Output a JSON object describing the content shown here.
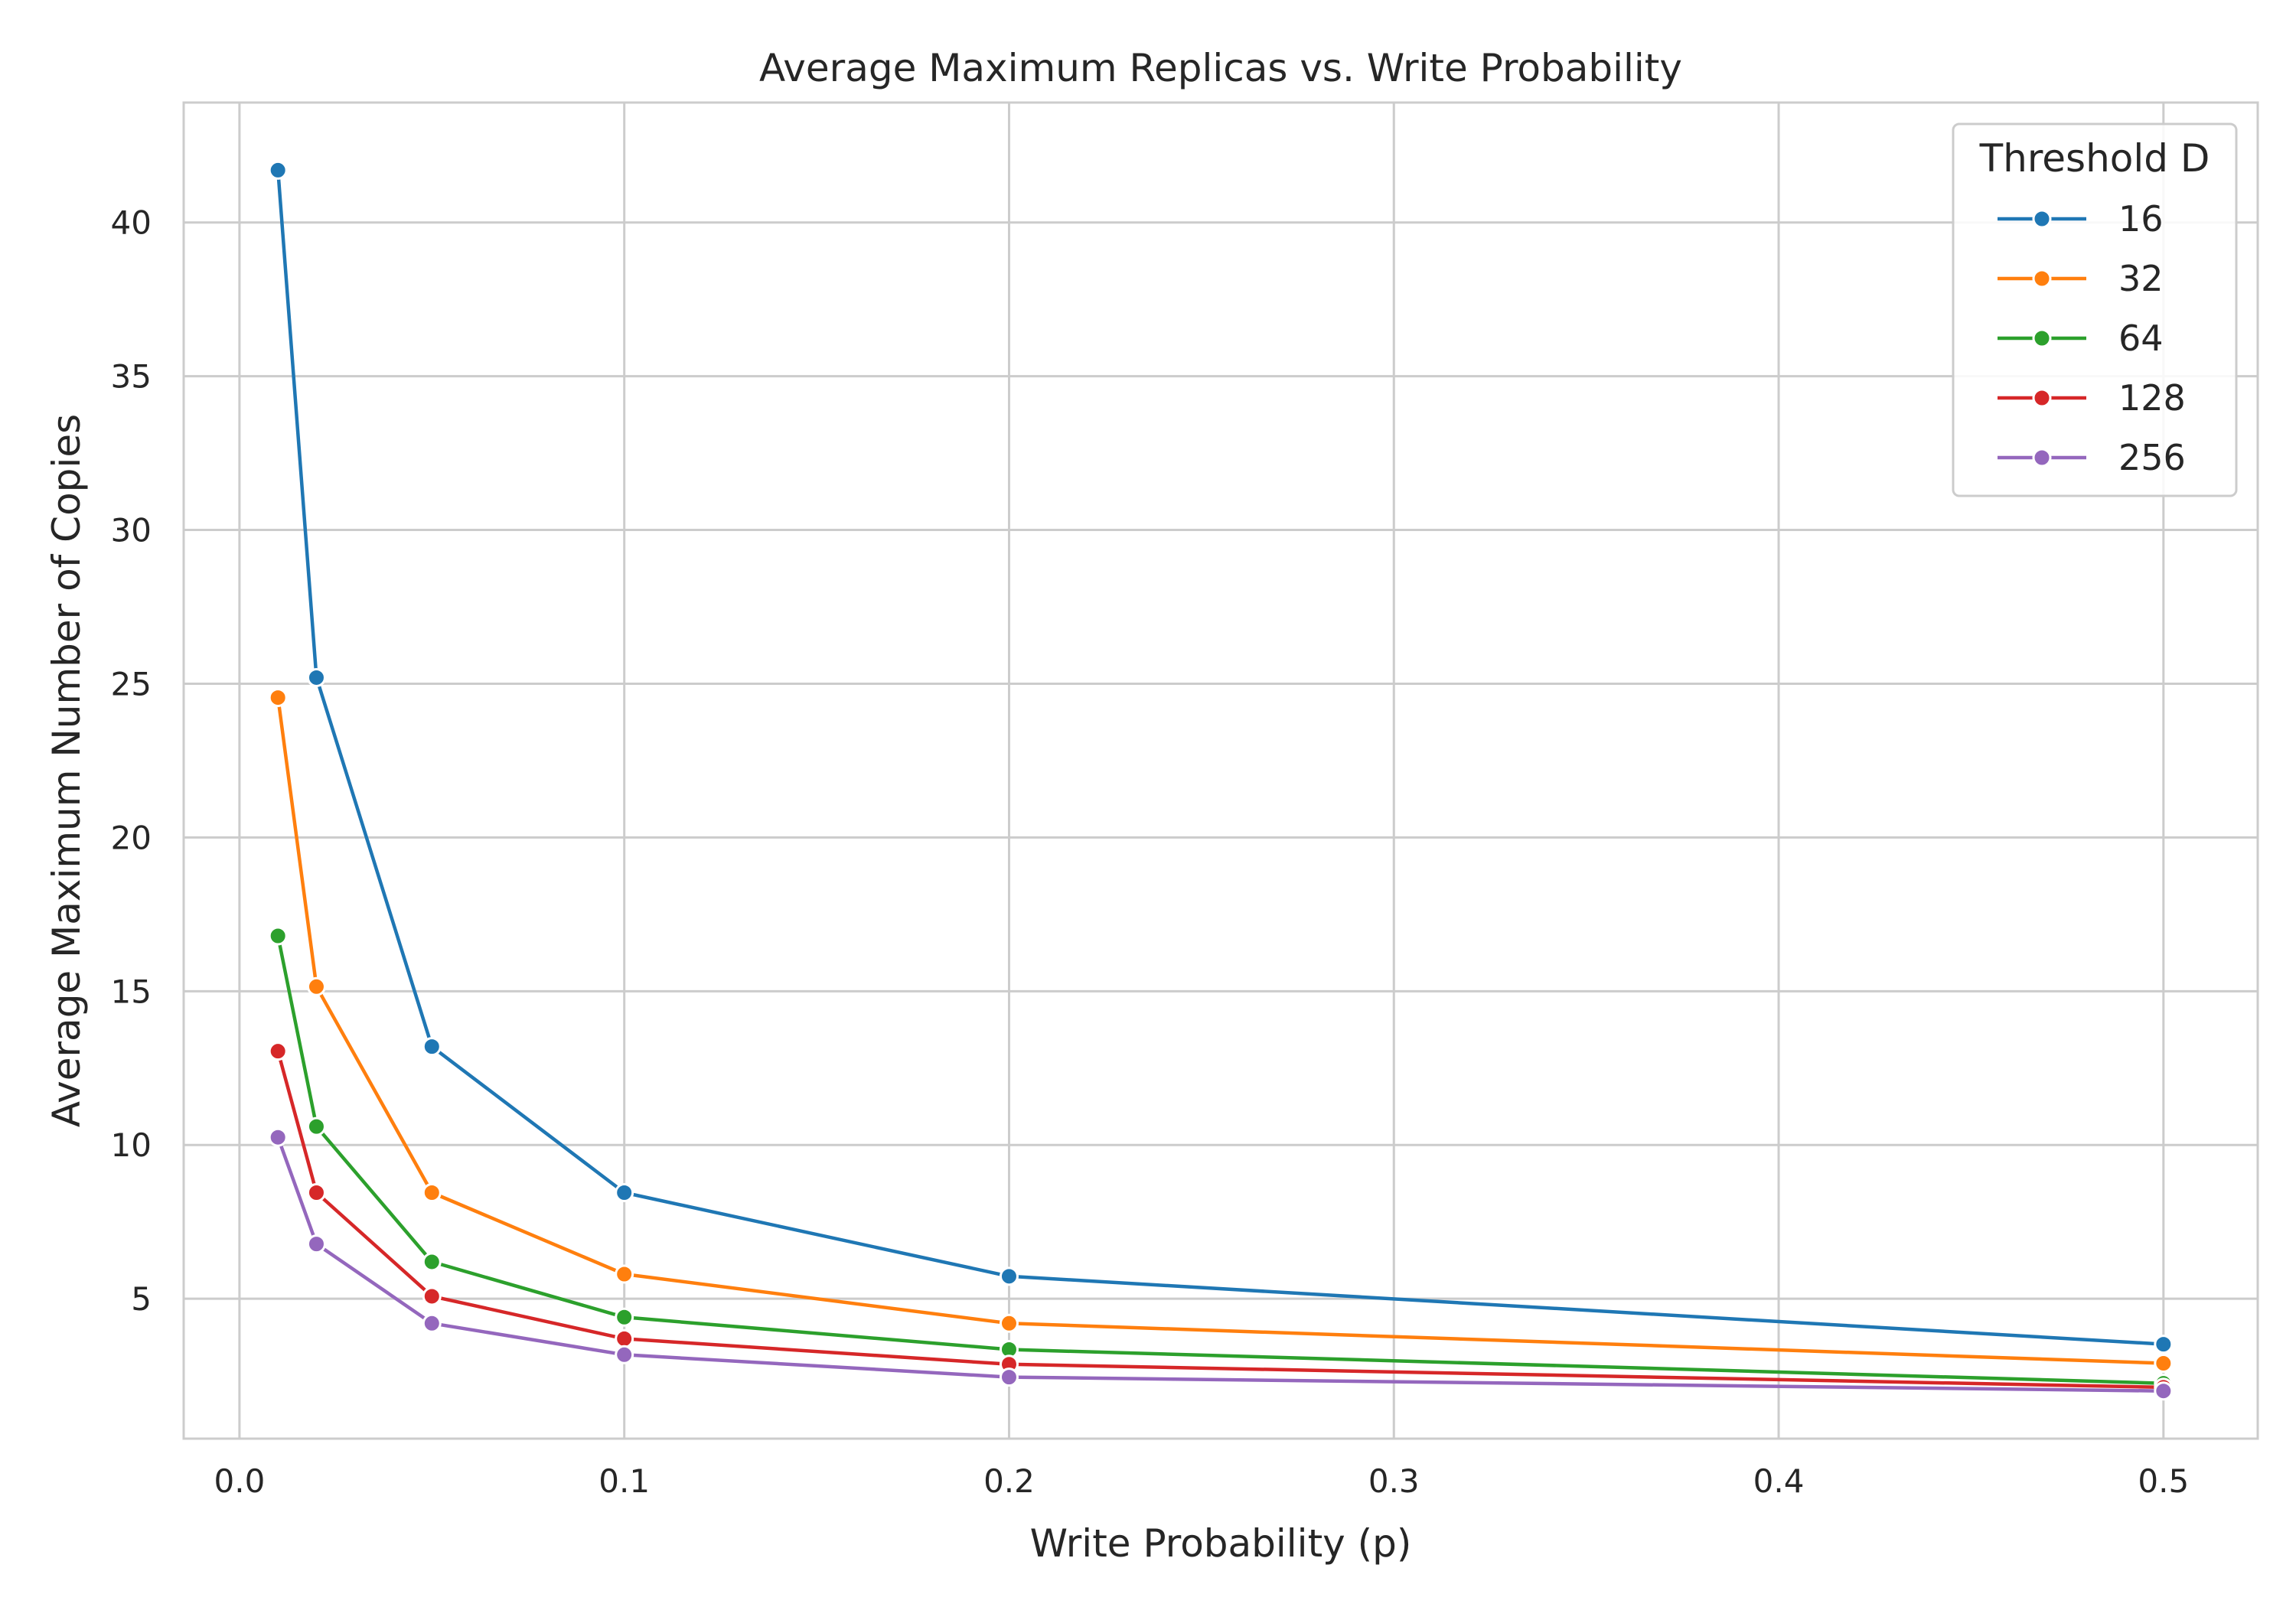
{
  "chart_data": {
    "type": "line",
    "title": "Average Maximum Replicas vs. Write Probability",
    "xlabel": "Write Probability (p)",
    "ylabel": "Average Maximum Number of Copies",
    "x": [
      0.01,
      0.02,
      0.05,
      0.1,
      0.2,
      0.5
    ],
    "xlim": [
      -0.0145,
      0.5245
    ],
    "ylim": [
      0.45,
      43.9
    ],
    "xticks": [
      0.0,
      0.1,
      0.2,
      0.3,
      0.4,
      0.5
    ],
    "xtick_labels": [
      "0.0",
      "0.1",
      "0.2",
      "0.3",
      "0.4",
      "0.5"
    ],
    "yticks": [
      5,
      10,
      15,
      20,
      25,
      30,
      35,
      40
    ],
    "ytick_labels": [
      "5",
      "10",
      "15",
      "20",
      "25",
      "30",
      "35",
      "40"
    ],
    "grid": true,
    "legend": {
      "title": "Threshold D",
      "placement": "top-right"
    },
    "series": [
      {
        "name": "16",
        "color": "#1f77b4",
        "values": [
          41.7,
          25.2,
          13.2,
          8.45,
          5.73,
          3.52
        ]
      },
      {
        "name": "32",
        "color": "#ff7f0e",
        "values": [
          24.55,
          15.15,
          8.45,
          5.8,
          4.2,
          2.9
        ]
      },
      {
        "name": "64",
        "color": "#2ca02c",
        "values": [
          16.8,
          10.6,
          6.2,
          4.4,
          3.35,
          2.25
        ]
      },
      {
        "name": "128",
        "color": "#d62728",
        "values": [
          13.05,
          8.45,
          5.08,
          3.7,
          2.87,
          2.12
        ]
      },
      {
        "name": "256",
        "color": "#9467bd",
        "values": [
          10.25,
          6.78,
          4.2,
          3.18,
          2.45,
          2.0
        ]
      }
    ]
  }
}
